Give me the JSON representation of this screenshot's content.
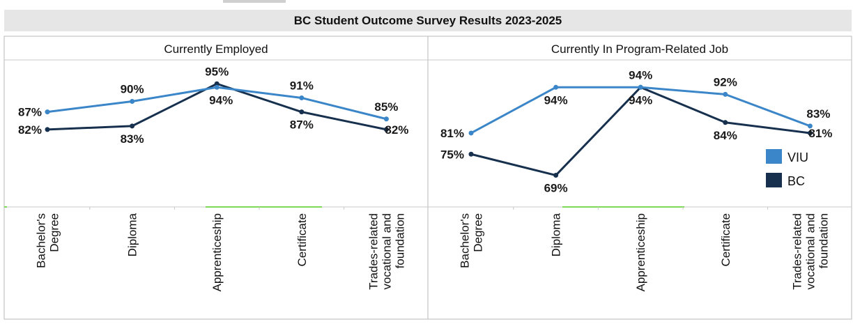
{
  "title": "BC Student Outcome Survey Results 2023-2025",
  "colors": {
    "VIU": "#3b86c8",
    "BC": "#16304e",
    "accent_green": "#7ed957"
  },
  "legend": [
    {
      "name": "VIU",
      "color": "#3b86c8"
    },
    {
      "name": "BC",
      "color": "#16304e"
    }
  ],
  "chart_data": [
    {
      "type": "line",
      "title": "Currently Employed",
      "categories": [
        [
          "Bachelor's",
          "Degree"
        ],
        [
          "Diploma"
        ],
        [
          "Apprenticeship"
        ],
        [
          "Certificate"
        ],
        [
          "Trades-related",
          "vocational and",
          "foundation"
        ]
      ],
      "series": [
        {
          "name": "VIU",
          "values": [
            87,
            90,
            94,
            91,
            85
          ]
        },
        {
          "name": "BC",
          "values": [
            82,
            83,
            95,
            87,
            82
          ]
        }
      ],
      "ylim": [
        60,
        100
      ],
      "grid": false,
      "legend": "none"
    },
    {
      "type": "line",
      "title": "Currently In Program-Related Job",
      "categories": [
        [
          "Bachelor's",
          "Degree"
        ],
        [
          "Diploma"
        ],
        [
          "Apprenticeship"
        ],
        [
          "Certificate"
        ],
        [
          "Trades-related",
          "vocational and",
          "foundation"
        ]
      ],
      "series": [
        {
          "name": "VIU",
          "values": [
            81,
            94,
            94,
            92,
            83
          ]
        },
        {
          "name": "BC",
          "values": [
            75,
            69,
            94,
            84,
            81
          ]
        }
      ],
      "ylim": [
        60,
        100
      ],
      "grid": false,
      "legend": "right"
    }
  ]
}
